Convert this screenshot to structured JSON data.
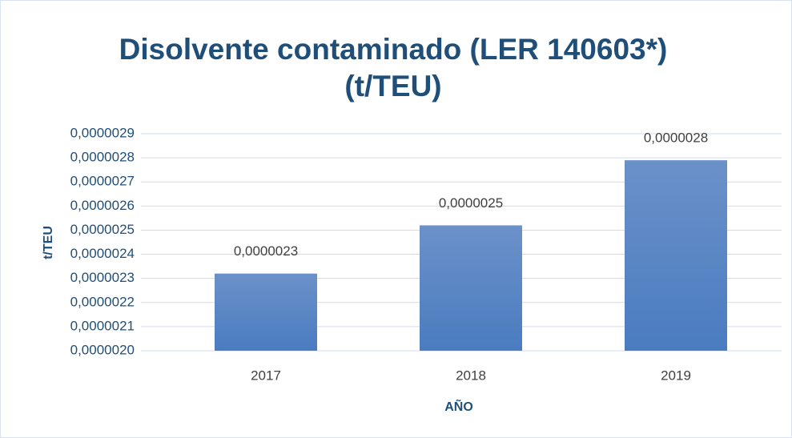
{
  "chart_data": {
    "type": "bar",
    "title": "Disolvente contaminado (LER 140603*) (t/TEU)",
    "x_label": "AÑO",
    "y_label": "t/TEU",
    "categories": [
      "2017",
      "2018",
      "2019"
    ],
    "values": [
      2.32e-06,
      2.52e-06,
      2.79e-06
    ],
    "value_labels": [
      "0,0000023",
      "0,0000025",
      "0,0000028"
    ],
    "color": "#4a7cc0",
    "ylim": [
      2e-06,
      2.9e-06
    ],
    "yticks": [
      {
        "value": 2e-06,
        "label": "0,0000020"
      },
      {
        "value": 2.1e-06,
        "label": "0,0000021"
      },
      {
        "value": 2.2e-06,
        "label": "0,0000022"
      },
      {
        "value": 2.3e-06,
        "label": "0,0000023"
      },
      {
        "value": 2.4e-06,
        "label": "0,0000024"
      },
      {
        "value": 2.5e-06,
        "label": "0,0000025"
      },
      {
        "value": 2.6e-06,
        "label": "0,0000026"
      },
      {
        "value": 2.7e-06,
        "label": "0,0000027"
      },
      {
        "value": 2.8e-06,
        "label": "0,0000028"
      },
      {
        "value": 2.9e-06,
        "label": "0,0000029"
      }
    ],
    "grid": true
  }
}
